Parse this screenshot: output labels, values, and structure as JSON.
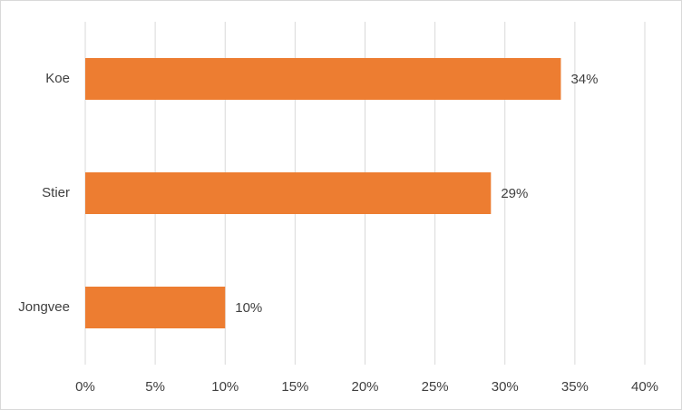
{
  "chart_data": {
    "type": "hbar",
    "categories": [
      "Koe",
      "Stier",
      "Jongvee"
    ],
    "values": [
      34,
      29,
      10
    ],
    "value_labels": [
      "34%",
      "29%",
      "10%"
    ],
    "color": "#ed7d31",
    "xlim": [
      0,
      40
    ],
    "xticks": [
      {
        "value": 0,
        "label": "0%"
      },
      {
        "value": 5,
        "label": "5%"
      },
      {
        "value": 10,
        "label": "10%"
      },
      {
        "value": 15,
        "label": "15%"
      },
      {
        "value": 20,
        "label": "20%"
      },
      {
        "value": 25,
        "label": "25%"
      },
      {
        "value": 30,
        "label": "30%"
      },
      {
        "value": 35,
        "label": "35%"
      },
      {
        "value": 40,
        "label": "40%"
      }
    ],
    "grid": true
  }
}
